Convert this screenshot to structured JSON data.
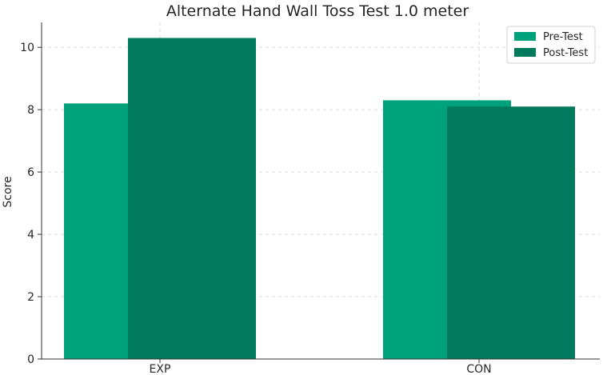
{
  "chart_data": {
    "type": "bar",
    "title": "Alternate Hand Wall Toss Test 1.0 meter",
    "xlabel": "",
    "ylabel": "Score",
    "categories": [
      "EXP",
      "CON"
    ],
    "series": [
      {
        "name": "Pre-Test",
        "values": [
          8.2,
          8.3
        ],
        "color": "#00a27b"
      },
      {
        "name": "Post-Test",
        "values": [
          10.3,
          8.1
        ],
        "color": "#007a5c"
      }
    ],
    "ylim": [
      0,
      10.8
    ],
    "yticks": [
      0,
      2,
      4,
      6,
      8,
      10
    ],
    "grid": true,
    "legend_position": "top-right"
  }
}
